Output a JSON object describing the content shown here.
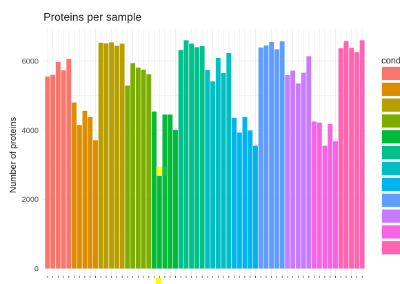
{
  "chart_data": {
    "type": "bar",
    "title": "Proteins per sample",
    "xlabel": "",
    "ylabel": "Number of proteins",
    "ylim": [
      0,
      6900
    ],
    "yticks": [
      0,
      2000,
      4000,
      6000
    ],
    "grid": true,
    "legend": {
      "title": "cond",
      "placement": "right"
    },
    "groups": [
      {
        "color": "#F8766D",
        "values": [
          5550,
          5600,
          5970,
          5730,
          6060
        ]
      },
      {
        "color": "#DE8C00",
        "values": [
          4800,
          4150,
          4560,
          4380,
          3710
        ]
      },
      {
        "color": "#B79F00",
        "values": [
          6530,
          6510,
          6540,
          6440,
          6500
        ]
      },
      {
        "color": "#7CAE00",
        "values": [
          5290,
          5940,
          5810,
          5750,
          5620
        ]
      },
      {
        "color": "#00BA38",
        "values": [
          4540,
          2680,
          4450,
          4450,
          4010
        ]
      },
      {
        "color": "#00C08B",
        "values": [
          6320,
          6600,
          6500,
          6400,
          6430
        ]
      },
      {
        "color": "#00BFC4",
        "values": [
          5740,
          5410,
          6090,
          5650,
          6230
        ]
      },
      {
        "color": "#00B4F0",
        "values": [
          4360,
          3930,
          4380,
          3990,
          3550
        ]
      },
      {
        "color": "#619CFF",
        "values": [
          6390,
          6450,
          6550,
          6340,
          6570
        ]
      },
      {
        "color": "#C77CFF",
        "values": [
          5590,
          5720,
          5350,
          5660,
          6140
        ]
      },
      {
        "color": "#F564E3",
        "values": [
          4250,
          4220,
          3550,
          4180,
          3680
        ]
      },
      {
        "color": "#FF64B0",
        "values": [
          6370,
          6580,
          6380,
          6260,
          6600
        ]
      }
    ],
    "highlights": [
      {
        "color": "#ffff00",
        "y_from": 2680,
        "y_to": 2950,
        "bar": 21
      }
    ]
  }
}
